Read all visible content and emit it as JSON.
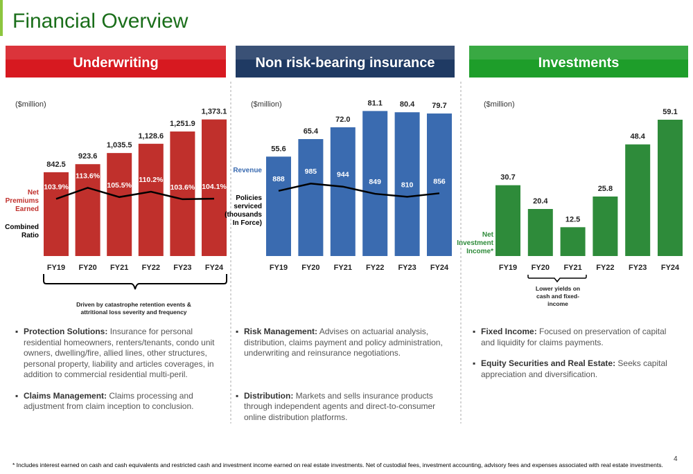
{
  "title": "Financial Overview",
  "chart_data": [
    {
      "type": "bar",
      "title": "Underwriting",
      "header_color": "#d71920",
      "subtitle": "($million)",
      "categories": [
        "FY19",
        "FY20",
        "FY21",
        "FY22",
        "FY23",
        "FY24"
      ],
      "ylim": [
        0,
        1600
      ],
      "y2lim": [
        54,
        193
      ],
      "series": [
        {
          "name": "Net Premiums Earned",
          "color": "#c0302c",
          "values": [
            842.5,
            923.6,
            1035.5,
            1128.6,
            1251.9,
            1373.1
          ],
          "value_labels": [
            "842.5",
            "923.6",
            "1,035.5",
            "1,128.6",
            "1,251.9",
            "1,373.1"
          ]
        },
        {
          "name": "Combined Ratio",
          "type": "line",
          "axis": "y2",
          "color": "#000000",
          "values": [
            103.9,
            113.6,
            105.5,
            110.2,
            103.6,
            104.1
          ],
          "value_labels": [
            "103.9%",
            "113.6%",
            "105.5%",
            "110.2%",
            "103.6%",
            "104.1%"
          ]
        }
      ],
      "annotation": "Driven by catastrophe retention events & attritional loss severity and frequency"
    },
    {
      "type": "bar",
      "title": "Non risk-bearing insurance",
      "header_color": "#1f3a63",
      "subtitle": "($million)",
      "categories": [
        "FY19",
        "FY20",
        "FY21",
        "FY22",
        "FY23",
        "FY24"
      ],
      "ylim": [
        0,
        89
      ],
      "y2lim": [
        24,
        2134
      ],
      "series": [
        {
          "name": "Revenue",
          "color": "#3a6bb0",
          "values": [
            55.6,
            65.4,
            72.0,
            81.1,
            80.4,
            79.7
          ],
          "value_labels": [
            "55.6",
            "65.4",
            "72.0",
            "81.1",
            "80.4",
            "79.7"
          ]
        },
        {
          "name": "Policies serviced (thousands In Force)",
          "type": "line",
          "axis": "y2",
          "color": "#000000",
          "values": [
            888,
            985,
            944,
            849,
            810,
            856
          ]
        }
      ]
    },
    {
      "type": "bar",
      "title": "Investments",
      "header_color": "#1e9e2a",
      "subtitle": "($million)",
      "categories": [
        "FY19",
        "FY20",
        "FY21",
        "FY22",
        "FY23",
        "FY24"
      ],
      "ylim": [
        0,
        69
      ],
      "series": [
        {
          "name": "Net Investment Income*",
          "color": "#2e8b3a",
          "values": [
            30.7,
            20.4,
            12.5,
            25.8,
            48.4,
            59.1
          ]
        }
      ],
      "annotation": "Lower yields on cash and fixed-income"
    }
  ],
  "sections": [
    {
      "bullets": [
        {
          "head": "Protection Solutions:",
          "text": "Insurance for personal residential homeowners, renters/tenants, condo unit owners, dwelling/fire, allied lines, other structures, personal property, liability and articles coverages, in addition to commercial residential multi-peril."
        },
        {
          "head": "Claims Management:",
          "text": "Claims processing and adjustment from claim inception to conclusion."
        }
      ]
    },
    {
      "bullets": [
        {
          "head": "Risk Management:",
          "text": "Advises on actuarial analysis, distribution, claims payment and policy administration, underwriting and reinsurance negotiations."
        },
        {
          "head": "Distribution:",
          "text": "Markets and sells insurance products through independent agents and direct-to-consumer online distribution platforms."
        }
      ]
    },
    {
      "bullets": [
        {
          "head": "Fixed Income:",
          "text": "Focused on preservation of capital and liquidity for claims payments."
        },
        {
          "head": "Equity Securities and Real Estate:",
          "text": "Seeks capital appreciation and diversification."
        }
      ]
    }
  ],
  "footnote": "* Includes interest earned on cash and cash equivalents and restricted cash and investment income earned on real estate investments. Net of custodial fees, investment accounting, advisory fees and expenses associated with real estate investments.",
  "page_number": "4"
}
